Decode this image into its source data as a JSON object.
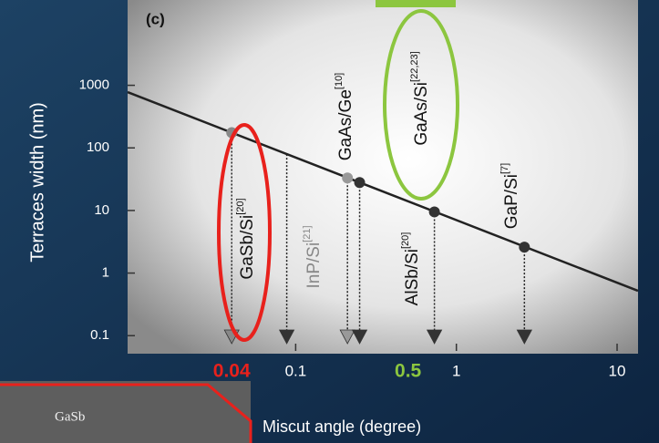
{
  "chart_data": {
    "type": "line",
    "panel_label": "(c)",
    "x_label": "Miscut angle (degree)",
    "y_label": "Terraces width (nm)",
    "xscale": "log",
    "yscale": "log",
    "xlim": [
      0.009,
      13.5
    ],
    "ylim": [
      0.057,
      19500
    ],
    "xticks": [
      0.1,
      1,
      10
    ],
    "yticks": [
      0.1,
      1,
      10,
      100,
      1000
    ],
    "highlights": [
      {
        "value": 0.04,
        "color": "#e8211c"
      },
      {
        "value": 0.5,
        "color": "#8cc63f"
      }
    ],
    "line": {
      "color": "#222222",
      "x": [
        0.009,
        13.5
      ],
      "values": [
        778,
        0.52
      ]
    },
    "materials": [
      {
        "name": "GaSb/Si",
        "ref": "[20]",
        "x": 0.04,
        "y": 175,
        "color": "#888888"
      },
      {
        "name": "InP/Si",
        "ref": "[21]",
        "x": 0.088,
        "y": null,
        "color": "#333333"
      },
      {
        "name": "GaAs/Ge",
        "ref": "[10]",
        "x": 0.21,
        "y": 33,
        "color": "#999999"
      },
      {
        "name": "GaAs/Si",
        "ref": "[22,23]",
        "x": 0.25,
        "y": 28,
        "color": "#333333"
      },
      {
        "name": "AlSb/Si",
        "ref": "[20]",
        "x": 0.73,
        "y": 9.5,
        "color": "#333333"
      },
      {
        "name": "GaP/Si",
        "ref": "[7]",
        "x": 2.65,
        "y": 2.6,
        "color": "#333333"
      }
    ],
    "inset_label": "GaSb"
  }
}
